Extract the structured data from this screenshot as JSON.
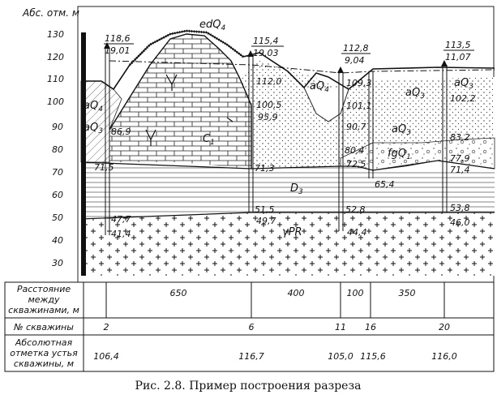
{
  "axis": {
    "title": "Абс. отм. м",
    "ticks": [
      "130",
      "120",
      "110",
      "100",
      "90",
      "80",
      "70",
      "60",
      "50",
      "40",
      "30"
    ]
  },
  "wells": [
    {
      "elev_text": "118,6",
      "depth_text": "19,01"
    },
    {
      "elev_text": "115,4",
      "depth_text": "19,03"
    },
    {
      "elev_text": "112,8",
      "depth_text": "9,04"
    },
    {
      "elev_text": "113,5",
      "depth_text": "11,07"
    }
  ],
  "marks": [
    "86,9",
    "71,5",
    "47,7",
    "41,4",
    "112,0",
    "100,5",
    "95,9",
    "71,3",
    "51,5",
    "49,7",
    "109,3",
    "101,1",
    "90,7",
    "80,4",
    "72,5",
    "65,4",
    "52,8",
    "44,4",
    "102,2",
    "83,2",
    "77,9",
    "71,4",
    "53,8",
    "46,0"
  ],
  "strata": {
    "edQ4": "edQ",
    "edQ4_sub": "4",
    "aQ4_left": "aQ",
    "aQ4_left_sub": "4",
    "aQ3_left": "aQ",
    "aQ3_left_sub": "3",
    "C1": "C",
    "C1_sub": "1",
    "D3": "D",
    "D3_sub": "3",
    "gammaPR": "γPR",
    "aQ4_mid": "aQ",
    "aQ4_mid_sub": "4",
    "aQ3_mid": "aQ",
    "aQ3_mid_sub": "3",
    "fgQ1": "fgQ",
    "fgQ1_sub": "1",
    "aQ3_right": "aQ",
    "aQ3_right_sub": "3",
    "aQ3_far": "aQ",
    "aQ3_far_sub": "3"
  },
  "table": {
    "row1_label": [
      "Расстояние",
      "между",
      "скважинами, м"
    ],
    "distances": [
      "650",
      "400",
      "100",
      "350"
    ],
    "row2_label": "№ скважины",
    "well_numbers": [
      "2",
      "6",
      "11",
      "16",
      "20"
    ],
    "row3_label": [
      "Абсолютная",
      "отметка устья",
      "скважины, м"
    ],
    "collar_elevations": [
      "106,4",
      "116,7",
      "105,0",
      "115,6",
      "116,0"
    ]
  },
  "caption": "Рис. 2.8. Пример построения разреза"
}
